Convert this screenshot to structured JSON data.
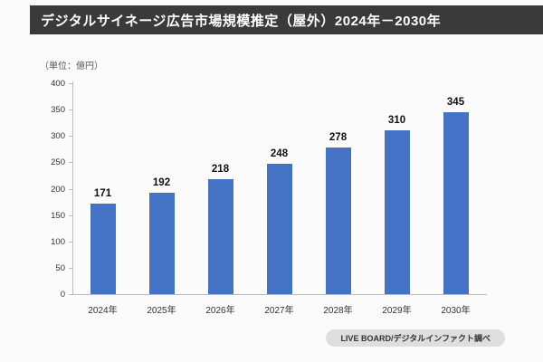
{
  "header": {
    "title": "デジタルサイネージ広告市場規模推定（屋外）2024年－2030年"
  },
  "chart_data": {
    "type": "bar",
    "title": "デジタルサイネージ広告市場規模推定（屋外）2024年－2030年",
    "unit_label": "（単位：億円）",
    "categories": [
      "2024年",
      "2025年",
      "2026年",
      "2027年",
      "2028年",
      "2029年",
      "2030年"
    ],
    "values": [
      171,
      192,
      218,
      248,
      278,
      310,
      345
    ],
    "xlabel": "",
    "ylabel": "",
    "ylim": [
      0,
      400
    ],
    "ytick_interval": 50,
    "bar_color": "#4472c4",
    "grid": false,
    "legend": false
  },
  "footer": {
    "source": "LIVE BOARD/デジタルインファクト調べ"
  }
}
